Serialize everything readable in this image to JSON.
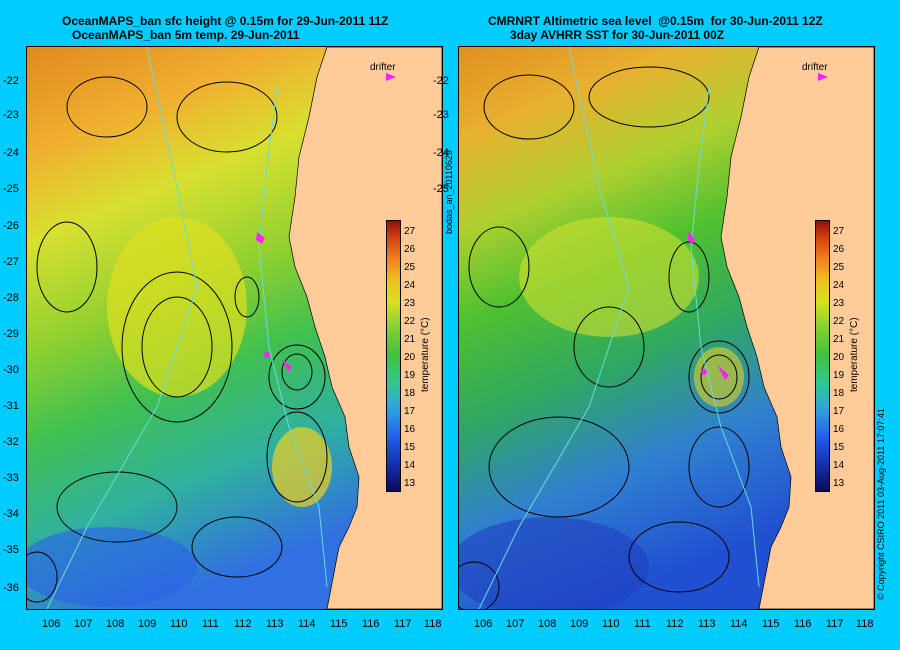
{
  "left_panel": {
    "title_line1": "OceanMAPS_ban sfc height @ 0.15m for 29-Jun-2011 11Z",
    "title_line2": "OceanMAPS_ban 5m temp. 29-Jun-2011"
  },
  "right_panel": {
    "title_line1": "CMRNRT Altimetric sea level  @0.15m  for 30-Jun-2011 12Z",
    "title_line2": "3day AVHRR SST for 30-Jun-2011 00Z"
  },
  "latitude_labels": [
    "-22",
    "-23",
    "-24",
    "-25",
    "-26",
    "-27",
    "-28",
    "-29",
    "-30",
    "-31",
    "-32",
    "-33",
    "-34",
    "-35",
    "-36"
  ],
  "longitude_labels": [
    "106",
    "107",
    "108",
    "109",
    "110",
    "111",
    "112",
    "113",
    "114",
    "115",
    "116",
    "117",
    "118"
  ],
  "colorbar": {
    "labels": [
      "27",
      "26",
      "25",
      "24",
      "23",
      "22",
      "21",
      "20",
      "19",
      "18",
      "17",
      "16",
      "15",
      "14",
      "13"
    ],
    "title": "temperature (°C)"
  },
  "drifter_legend": "drifter",
  "side_label": "bodas_an_20110629",
  "copyright": "© Copyright CSIRO 2011   03-Aug-2011 17:07:41",
  "colors": {
    "background": "#00ccff",
    "land": "#ffcc99",
    "drifter": "#ff22ff",
    "contour": "#000000",
    "bathymetry": "#66dddd"
  }
}
